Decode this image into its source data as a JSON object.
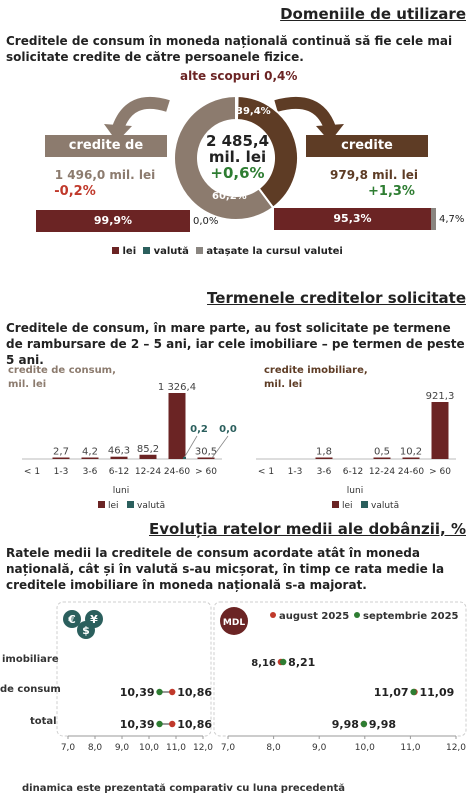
{
  "colors": {
    "lei": "#6b2424",
    "valuta": "#2b5f5d",
    "atasate": "#8a8580",
    "brown_dark": "#5e3c25",
    "taupe": "#8c7b6e",
    "green": "#2e7d32",
    "red": "#c0392b"
  },
  "section1": {
    "title": "Domeniile de utilizare",
    "intro": "Creditele de consum în moneda națională continuă să fie cele mai solicitate credite de către persoanele fizice.",
    "other_label": "alte scopuri 0,4%",
    "total_value": "2 485,4",
    "total_unit": "mil. lei",
    "total_change": "+0,6%",
    "donut_pct_top": "39,4%",
    "donut_pct_bottom": "60,2%",
    "consum": {
      "label": "credite de consum",
      "amount": "1 496,0 mil. lei",
      "change": "-0,2%",
      "bar_lei": "99,9%",
      "bar_rest": "0,0%"
    },
    "imobiliare": {
      "label": "credite imobiliare",
      "amount": "979,8 mil. lei",
      "change": "+1,3%",
      "bar_lei": "95,3%",
      "bar_rest": "4,7%"
    },
    "legend": [
      "lei",
      "valută",
      "atașate la cursul valutei"
    ]
  },
  "section2": {
    "title": "Termenele creditelor solicitate",
    "intro": "Creditele de consum, în mare parte, au fost solicitate pe termene de rambursare de  2 – 5 ani, iar cele imobiliare – pe termen de peste 5 ani.",
    "xlabel": "luni",
    "legend": [
      "lei",
      "valută"
    ]
  },
  "section3": {
    "title": "Evoluția ratelor medii ale dobânzii, %",
    "intro": "Ratele medii la creditele de consum acordate atât în moneda națională, cât și în valută s-au micșorat, în timp ce rata medie la creditele imobiliare în moneda națională s-a majorat.",
    "legend": [
      "august 2025",
      "septembrie 2025"
    ],
    "currency_badge": "MDL",
    "categories": [
      "imobiliare",
      "de consum",
      "total"
    ],
    "footnote": "dinamica este prezentată comparativ cu luna precedentă"
  },
  "chart_data": [
    {
      "type": "pie",
      "title": "Domeniile de utilizare",
      "slices": [
        {
          "name": "credite de consum",
          "value": 60.2,
          "amount": 1496.0
        },
        {
          "name": "credite imobiliare",
          "value": 39.4,
          "amount": 979.8
        },
        {
          "name": "alte scopuri",
          "value": 0.4
        }
      ],
      "total": 2485.4,
      "total_change": "+0,6%"
    },
    {
      "type": "bar",
      "title": "credite de consum, mil. lei",
      "categories": [
        "< 1",
        "1-3",
        "3-6",
        "6-12",
        "12-24",
        "24-60",
        "> 60"
      ],
      "series": [
        {
          "name": "lei",
          "values": [
            0,
            2.7,
            4.2,
            46.3,
            85.2,
            1326.4,
            30.5
          ]
        },
        {
          "name": "valută",
          "values": [
            0,
            0,
            0,
            0,
            0,
            0.2,
            0.0
          ]
        }
      ],
      "labels": [
        "",
        "2,7",
        "4,2",
        "46,3",
        "85,2",
        "1 326,4",
        "30,5"
      ],
      "valuta_labels": [
        "",
        "",
        "",
        "",
        "",
        "0,2",
        "0,0"
      ],
      "xlabel": "luni"
    },
    {
      "type": "bar",
      "title": "credite imobiliare, mil. lei",
      "categories": [
        "< 1",
        "1-3",
        "3-6",
        "6-12",
        "12-24",
        "24-60",
        "> 60"
      ],
      "series": [
        {
          "name": "lei",
          "values": [
            0,
            0,
            1.8,
            0,
            0.5,
            10.2,
            921.3
          ]
        },
        {
          "name": "valută",
          "values": [
            0,
            0,
            0,
            0,
            0,
            0,
            0
          ]
        }
      ],
      "labels": [
        "",
        "",
        "1,8",
        "",
        "0,5",
        "10,2",
        "921,3"
      ],
      "xlabel": "luni"
    },
    {
      "type": "scatter",
      "title": "valută",
      "categories": [
        "imobiliare",
        "de consum",
        "total"
      ],
      "series": [
        {
          "name": "august 2025",
          "values": [
            null,
            10.86,
            10.86
          ]
        },
        {
          "name": "septembrie 2025",
          "values": [
            null,
            10.39,
            10.39
          ]
        }
      ],
      "value_labels": [
        [
          "",
          ""
        ],
        [
          "10,39",
          "10,86"
        ],
        [
          "10,39",
          "10,86"
        ]
      ],
      "xlim": [
        7.0,
        12.0
      ],
      "ticks": [
        "7,0",
        "8,0",
        "9,0",
        "10,0",
        "11,0",
        "12,0"
      ]
    },
    {
      "type": "scatter",
      "title": "MDL",
      "categories": [
        "imobiliare",
        "de consum",
        "total"
      ],
      "series": [
        {
          "name": "august 2025",
          "values": [
            8.16,
            11.09,
            9.98
          ]
        },
        {
          "name": "septembrie 2025",
          "values": [
            8.21,
            11.07,
            9.98
          ]
        }
      ],
      "value_labels": [
        [
          "8,16",
          "8,21"
        ],
        [
          "11,07",
          "11,09"
        ],
        [
          "9,98",
          "9,98"
        ]
      ],
      "xlim": [
        7.0,
        12.0
      ],
      "ticks": [
        "7,0",
        "8,0",
        "9,0",
        "10,0",
        "11,0",
        "12,0"
      ]
    }
  ]
}
